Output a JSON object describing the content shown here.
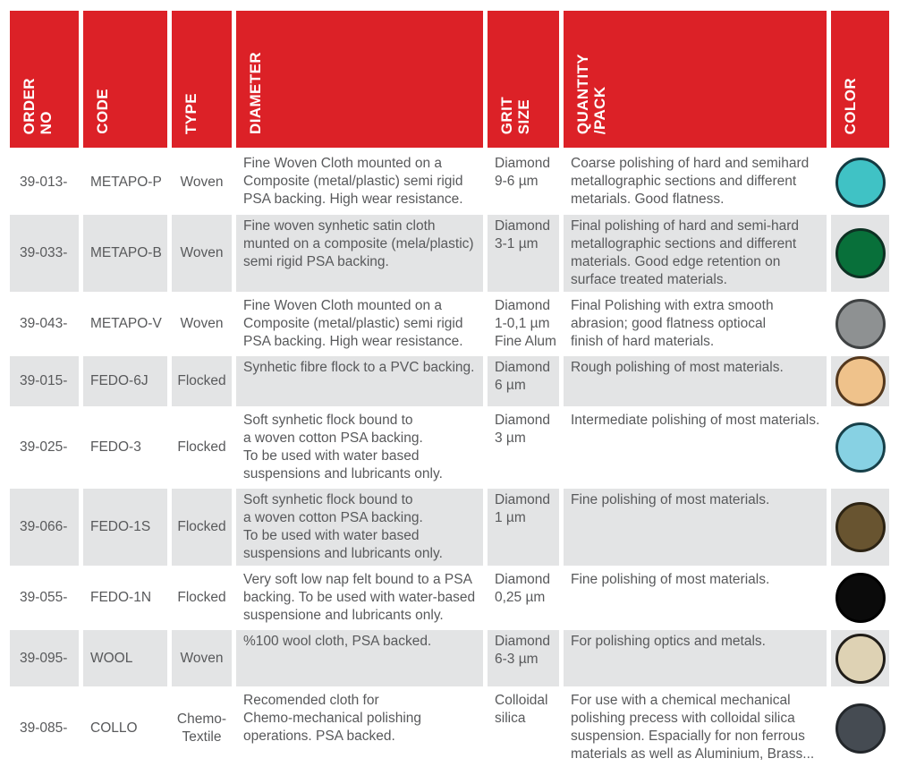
{
  "table": {
    "header": {
      "bg_color": "#dc2127",
      "columns": [
        {
          "label": "ORDER\nNO"
        },
        {
          "label": "CODE"
        },
        {
          "label": "TYPE"
        },
        {
          "label": "DIAMETER"
        },
        {
          "label": "GRIT\nSIZE"
        },
        {
          "label": "QUANTITY\n/PACK"
        },
        {
          "label": "COLOR"
        }
      ]
    },
    "rows": [
      {
        "order_no": "39-013-",
        "code": "METAPO-P",
        "type": "Woven",
        "diameter": "Fine Woven Cloth mounted on a\nComposite (metal/plastic) semi rigid\nPSA backing. High wear resistance.",
        "grit_size": "Diamond\n9-6 µm",
        "quantity_pack": "Coarse polishing of hard and semihard\nmetallographic sections and different\nmetarials. Good flatness.",
        "color": {
          "name": "turquoise",
          "fill": "#40c2c5",
          "border": "#143a42"
        }
      },
      {
        "order_no": "39-033-",
        "code": "METAPO-B",
        "type": "Woven",
        "diameter": "Fine woven synhetic satin cloth\nmunted on a composite (mela/plastic)\nsemi rigid PSA backing.",
        "grit_size": "Diamond\n3-1 µm",
        "quantity_pack": "Final polishing of hard and semi-hard\nmetallographic sections and different\nmaterials. Good edge retention on\nsurface treated materials.",
        "color": {
          "name": "dark-green",
          "fill": "#08703a",
          "border": "#0d3123"
        }
      },
      {
        "order_no": "39-043-",
        "code": "METAPO-V",
        "type": "Woven",
        "diameter": "Fine Woven Cloth mounted on a\nComposite (metal/plastic) semi rigid\nPSA backing. High wear resistance.",
        "grit_size": "Diamond\n1-0,1 µm\nFine Alum",
        "quantity_pack": "Final Polishing with extra smooth\nabrasion; good flatness optiocal\nfinish of hard materials.",
        "color": {
          "name": "gray",
          "fill": "#8e9192",
          "border": "#3f4243"
        }
      },
      {
        "order_no": "39-015-",
        "code": "FEDO-6J",
        "type": "Flocked",
        "diameter": "Synhetic fibre flock to a PVC backing.",
        "grit_size": "Diamond\n6 µm",
        "quantity_pack": "Rough polishing of most materials.",
        "color": {
          "name": "tan",
          "fill": "#efc28b",
          "border": "#54381d"
        }
      },
      {
        "order_no": "39-025-",
        "code": "FEDO-3",
        "type": "Flocked",
        "diameter": "Soft synhetic flock bound to\na woven cotton PSA backing.\nTo be used with water based\nsuspensions and lubricants only.",
        "grit_size": "Diamond\n3 µm",
        "quantity_pack": "Intermediate polishing of most materials.",
        "color": {
          "name": "light-blue",
          "fill": "#87d1e3",
          "border": "#174049"
        }
      },
      {
        "order_no": "39-066-",
        "code": "FEDO-1S",
        "type": "Flocked",
        "diameter": "Soft synhetic flock bound to\na woven cotton PSA backing.\nTo be used with water based\nsuspensions and lubricants only.",
        "grit_size": "Diamond\n1 µm",
        "quantity_pack": "Fine polishing of most materials.",
        "color": {
          "name": "dark-brown",
          "fill": "#685430",
          "border": "#2c2313"
        }
      },
      {
        "order_no": "39-055-",
        "code": "FEDO-1N",
        "type": "Flocked",
        "diameter": "Very soft low nap felt bound to a PSA\nbacking. To be used with water-based\nsuspensione and lubricants only.",
        "grit_size": "Diamond\n0,25 µm",
        "quantity_pack": "Fine polishing of most materials.",
        "color": {
          "name": "black",
          "fill": "#0b0b0b",
          "border": "#000000"
        }
      },
      {
        "order_no": "39-095-",
        "code": "WOOL",
        "type": "Woven",
        "diameter": "%100 wool cloth, PSA backed.",
        "grit_size": "Diamond\n6-3 µm",
        "quantity_pack": "For polishing optics and metals.",
        "color": {
          "name": "beige",
          "fill": "#ded2b4",
          "border": "#201d18"
        }
      },
      {
        "order_no": "39-085-",
        "code": "COLLO",
        "type": "Chemo-\nTextile",
        "diameter": "Recomended cloth for\nChemo-mechanical polishing\noperations. PSA backed.",
        "grit_size": "Colloidal\nsilica",
        "quantity_pack": "For use with a chemical mechanical\npolishing precess with colloidal silica\nsuspension. Espacially for non ferrous\nmaterials as well as Aluminium, Brass...",
        "color": {
          "name": "charcoal",
          "fill": "#454b52",
          "border": "#23272b"
        }
      }
    ]
  }
}
